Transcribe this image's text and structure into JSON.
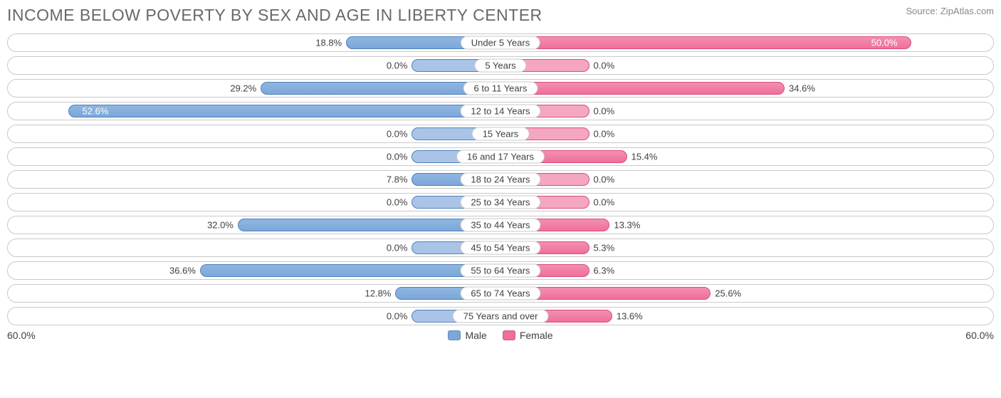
{
  "title": "INCOME BELOW POVERTY BY SEX AND AGE IN LIBERTY CENTER",
  "source": "Source: ZipAtlas.com",
  "chart": {
    "type": "bidirectional-bar",
    "axis_max": 60.0,
    "axis_label": "60.0%",
    "min_bar_pct": 9.0,
    "background_color": "#ffffff",
    "track_border_color": "#c9c9c9",
    "text_color": "#404040",
    "title_color": "#686868",
    "series": {
      "male": {
        "label": "Male",
        "fill": "#7ba7d9",
        "stroke": "#4f81bd",
        "min_fill": "#a9c4e6"
      },
      "female": {
        "label": "Female",
        "fill": "#ef6f9a",
        "stroke": "#d94f7d",
        "min_fill": "#f5a6c0"
      }
    },
    "rows": [
      {
        "age": "Under 5 Years",
        "male": 18.8,
        "female": 50.0
      },
      {
        "age": "5 Years",
        "male": 0.0,
        "female": 0.0
      },
      {
        "age": "6 to 11 Years",
        "male": 29.2,
        "female": 34.6
      },
      {
        "age": "12 to 14 Years",
        "male": 52.6,
        "female": 0.0
      },
      {
        "age": "15 Years",
        "male": 0.0,
        "female": 0.0
      },
      {
        "age": "16 and 17 Years",
        "male": 0.0,
        "female": 15.4
      },
      {
        "age": "18 to 24 Years",
        "male": 7.8,
        "female": 0.0
      },
      {
        "age": "25 to 34 Years",
        "male": 0.0,
        "female": 0.0
      },
      {
        "age": "35 to 44 Years",
        "male": 32.0,
        "female": 13.3
      },
      {
        "age": "45 to 54 Years",
        "male": 0.0,
        "female": 5.3
      },
      {
        "age": "55 to 64 Years",
        "male": 36.6,
        "female": 6.3
      },
      {
        "age": "65 to 74 Years",
        "male": 12.8,
        "female": 25.6
      },
      {
        "age": "75 Years and over",
        "male": 0.0,
        "female": 13.6
      }
    ]
  }
}
